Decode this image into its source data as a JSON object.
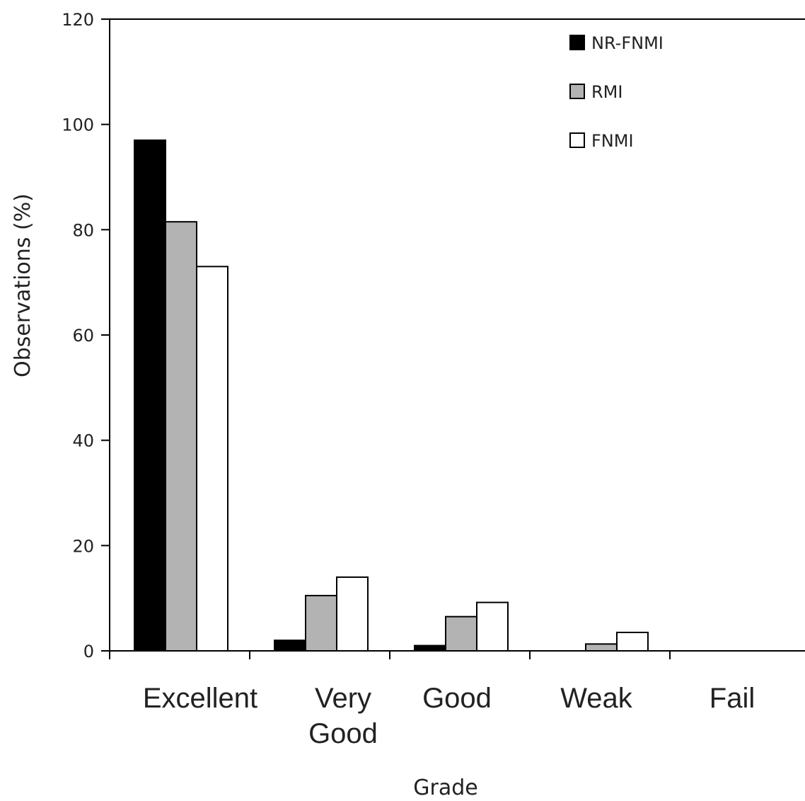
{
  "chart_data": {
    "type": "bar",
    "title": "",
    "xlabel": "Grade",
    "ylabel": "Observations (%)",
    "ylim": [
      0,
      120
    ],
    "yticks": [
      0,
      20,
      40,
      60,
      80,
      100,
      120
    ],
    "categories": [
      [
        "Excellent"
      ],
      [
        "Very",
        "Good"
      ],
      [
        "Good"
      ],
      [
        "Weak"
      ],
      [
        "Fail"
      ]
    ],
    "series": [
      {
        "name": "NR-FNMI",
        "color": "#000000",
        "values": [
          97,
          2,
          1,
          0,
          0
        ]
      },
      {
        "name": "RMI",
        "color": "#b3b3b3",
        "values": [
          81.5,
          10.5,
          6.5,
          1.3,
          0
        ]
      },
      {
        "name": "FNMI",
        "color": "#ffffff",
        "values": [
          73,
          14,
          9.2,
          3.5,
          0
        ]
      }
    ],
    "legend_position": "top-right",
    "grid": false
  }
}
